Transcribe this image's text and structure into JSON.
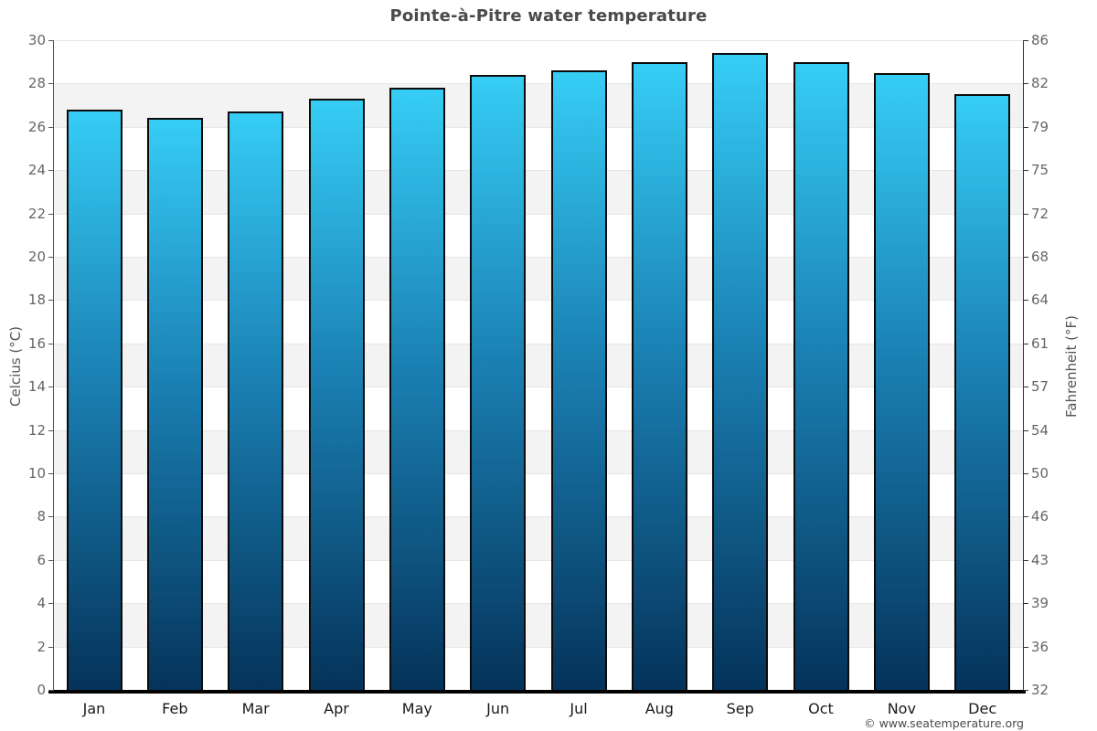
{
  "title": "Pointe-à-Pitre water temperature",
  "chart_data": {
    "type": "bar",
    "title": "Pointe-à-Pitre water temperature",
    "categories": [
      "Jan",
      "Feb",
      "Mar",
      "Apr",
      "May",
      "Jun",
      "Jul",
      "Aug",
      "Sep",
      "Oct",
      "Nov",
      "Dec"
    ],
    "values": [
      26.8,
      26.4,
      26.7,
      27.3,
      27.8,
      28.4,
      28.6,
      29.0,
      29.4,
      29.0,
      28.5,
      27.5
    ],
    "xlabel": "",
    "ylabel_left": "Celcius (°C)",
    "ylabel_right": "Fahrenheit (°F)",
    "ylim": [
      0,
      30
    ],
    "celsius_ticks": [
      0,
      2,
      4,
      6,
      8,
      10,
      12,
      14,
      16,
      18,
      20,
      22,
      24,
      26,
      28,
      30
    ],
    "fahrenheit_tick_labels": [
      "32",
      "36",
      "39",
      "43",
      "46",
      "50",
      "54",
      "57",
      "61",
      "64",
      "68",
      "72",
      "75",
      "79",
      "82",
      "86"
    ],
    "legend": null,
    "grid": "horizontal-bands",
    "colors": {
      "bar_gradient_top": "#36cdf5",
      "bar_gradient_mid": "#1b82b5",
      "bar_gradient_bottom": "#05335a",
      "bar_border": "#0b0b0b",
      "band_light": "#ffffff",
      "band_dark": "#f3f3f3",
      "tick_text": "#666666",
      "month_text": "#1a1a1a",
      "title_text": "#4a4a4a"
    }
  },
  "footer": {
    "copyright": "© www.seatemperature.org"
  }
}
